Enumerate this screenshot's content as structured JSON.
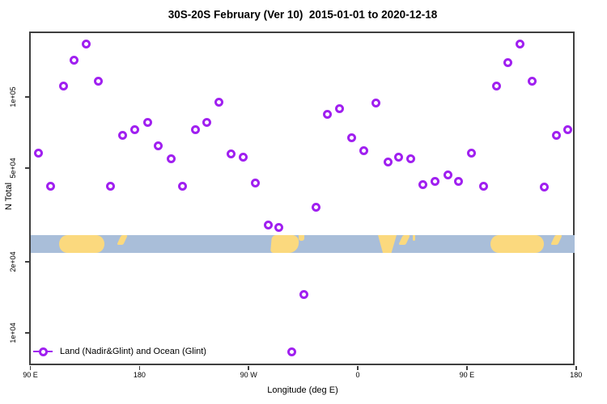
{
  "title": "30S-20S February (Ver 10)  2015-01-01 to 2020-12-18",
  "colors": {
    "marker": "#a020f0",
    "ocean": "#a9bed9",
    "land": "#fbd97e",
    "axis": "#3f3f3f"
  },
  "chart_data": {
    "type": "scatter",
    "title": "30S-20S February (Ver 10)  2015-01-01 to 2020-12-18",
    "xlabel": "Longitude (deg E)",
    "ylabel": "N Total",
    "y_scale": "log",
    "grid": false,
    "x_axis": {
      "description": "longitude, starting at 90E and wrapping eastward 450 degrees",
      "span_deg": 450,
      "ticks_deg": [
        0,
        90,
        180,
        270,
        360,
        450
      ],
      "tick_labels": [
        "90 E",
        "180",
        "90 W",
        "0",
        "90 E",
        "180"
      ]
    },
    "y_axis": {
      "tick_values": [
        100000,
        50000,
        20000,
        10000
      ],
      "tick_labels": [
        "1e+05",
        "5e+04",
        "2e+04",
        "1e+04"
      ],
      "ylim": [
        7200,
        188000
      ]
    },
    "legend": {
      "label": "Land (Nadir&Glint) and Ocean (Glint)",
      "position": "bottom-left"
    },
    "series": [
      {
        "name": "Land (Nadir&Glint) and Ocean (Glint)",
        "marker": "open-circle",
        "color": "#a020f0",
        "points_deg_n": [
          [
            6.7,
            57700
          ],
          [
            16.7,
            41700
          ],
          [
            27.3,
            111000
          ],
          [
            36.0,
            143000
          ],
          [
            46.0,
            168000
          ],
          [
            56.0,
            117000
          ],
          [
            66.0,
            41700
          ],
          [
            76.0,
            68600
          ],
          [
            86.0,
            72600
          ],
          [
            96.7,
            78300
          ],
          [
            105.3,
            61900
          ],
          [
            116.0,
            54500
          ],
          [
            125.3,
            41700
          ],
          [
            136.0,
            72600
          ],
          [
            145.3,
            77700
          ],
          [
            155.3,
            94700
          ],
          [
            165.3,
            57200
          ],
          [
            175.3,
            55400
          ],
          [
            185.3,
            43300
          ],
          [
            196.0,
            28600
          ],
          [
            204.7,
            27900
          ],
          [
            215.3,
            8340
          ],
          [
            225.3,
            14500
          ],
          [
            235.3,
            34000
          ],
          [
            244.7,
            84100
          ],
          [
            254.7,
            89500
          ],
          [
            264.7,
            66900
          ],
          [
            274.7,
            59400
          ],
          [
            285.3,
            93900
          ],
          [
            294.7,
            52800
          ],
          [
            304.0,
            55400
          ],
          [
            314.0,
            54900
          ],
          [
            324.0,
            42600
          ],
          [
            334.0,
            44000
          ],
          [
            344.7,
            46900
          ],
          [
            353.3,
            44000
          ],
          [
            364.0,
            57700
          ],
          [
            374.0,
            41700
          ],
          [
            384.7,
            111000
          ],
          [
            394.0,
            140000
          ],
          [
            404.0,
            168000
          ],
          [
            414.0,
            117000
          ],
          [
            424.0,
            41400
          ],
          [
            434.0,
            68600
          ],
          [
            443.3,
            72600
          ]
        ]
      }
    ],
    "map_band": {
      "description": "land/ocean strip for latitude band 30S-20S",
      "ocean_color": "#a9bed9",
      "land_color": "#fbd97e",
      "n_range": [
        21800,
        26000
      ],
      "land_segments": [
        {
          "d": [
            24.0,
            61.3
          ],
          "shape": "blob",
          "name": "australia"
        },
        {
          "d": [
            73.3,
            78.7
          ],
          "shape": "slash",
          "name": "fiji-islands"
        },
        {
          "d": [
            198.7,
            221.3
          ],
          "shape": "blob2",
          "name": "south-america"
        },
        {
          "d": [
            221.3,
            226.0
          ],
          "shape": "sliver",
          "name": "south-america-coast"
        },
        {
          "d": [
            286.7,
            302.0
          ],
          "shape": "funnel",
          "name": "southern-africa"
        },
        {
          "d": [
            305.3,
            311.3
          ],
          "shape": "slash",
          "name": "madagascar"
        },
        {
          "d": [
            315.3,
            317.3
          ],
          "shape": "sliver",
          "name": "small-island"
        },
        {
          "d": [
            379.3,
            423.3
          ],
          "shape": "blob",
          "name": "australia-repeat"
        },
        {
          "d": [
            430.7,
            436.7
          ],
          "shape": "slash",
          "name": "new-caledonia"
        }
      ]
    }
  }
}
